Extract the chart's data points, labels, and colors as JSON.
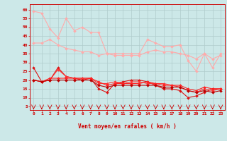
{
  "background_color": "#cce8e8",
  "grid_color": "#b0cccc",
  "xlabel": "Vent moyen/en rafales ( km/h )",
  "x_ticks": [
    0,
    1,
    2,
    3,
    4,
    5,
    6,
    7,
    8,
    9,
    10,
    11,
    12,
    13,
    14,
    15,
    16,
    17,
    18,
    19,
    20,
    21,
    22,
    23
  ],
  "y_ticks": [
    5,
    10,
    15,
    20,
    25,
    30,
    35,
    40,
    45,
    50,
    55,
    60
  ],
  "ylim": [
    3,
    63
  ],
  "xlim": [
    -0.5,
    23.5
  ],
  "series": [
    {
      "color": "#ffaaaa",
      "lw": 0.8,
      "marker": "D",
      "ms": 2.0,
      "values": [
        59,
        58,
        49,
        44,
        55,
        48,
        50,
        47,
        47,
        35,
        35,
        35,
        35,
        35,
        43,
        41,
        39,
        39,
        40,
        31,
        25,
        35,
        27,
        35
      ]
    },
    {
      "color": "#ffaaaa",
      "lw": 0.8,
      "marker": "D",
      "ms": 2.0,
      "values": [
        41,
        41,
        43,
        40,
        38,
        37,
        36,
        36,
        34,
        35,
        34,
        34,
        34,
        34,
        36,
        37,
        36,
        36,
        35,
        34,
        32,
        35,
        32,
        34
      ]
    },
    {
      "color": "#dd1111",
      "lw": 0.8,
      "marker": "D",
      "ms": 2.0,
      "values": [
        27,
        19,
        20,
        27,
        22,
        21,
        21,
        21,
        15,
        13,
        18,
        19,
        20,
        20,
        19,
        17,
        15,
        15,
        14,
        10,
        11,
        13,
        15,
        15
      ]
    },
    {
      "color": "#ff3333",
      "lw": 0.8,
      "marker": "D",
      "ms": 2.0,
      "values": [
        20,
        19,
        20,
        26,
        22,
        21,
        21,
        21,
        18,
        18,
        19,
        18,
        19,
        19,
        18,
        18,
        18,
        17,
        16,
        14,
        13,
        15,
        14,
        15
      ]
    },
    {
      "color": "#ff2222",
      "lw": 0.8,
      "marker": "D",
      "ms": 2.0,
      "values": [
        20,
        19,
        21,
        21,
        21,
        21,
        20,
        21,
        19,
        17,
        18,
        18,
        18,
        18,
        19,
        18,
        17,
        17,
        17,
        15,
        14,
        16,
        15,
        15
      ]
    },
    {
      "color": "#bb0000",
      "lw": 0.8,
      "marker": "D",
      "ms": 2.0,
      "values": [
        20,
        19,
        20,
        20,
        20,
        20,
        20,
        20,
        17,
        16,
        17,
        17,
        17,
        17,
        17,
        17,
        16,
        16,
        16,
        14,
        13,
        14,
        13,
        14
      ]
    }
  ],
  "arrow_color": "#cc0000",
  "spine_color": "#cc0000",
  "tick_color": "#cc0000",
  "label_color": "#cc0000"
}
